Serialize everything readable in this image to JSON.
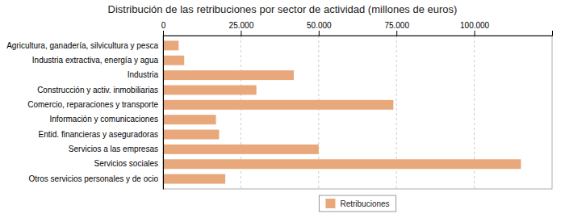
{
  "chart_data": {
    "type": "bar",
    "orientation": "horizontal",
    "title": "Distribución de las retribuciones por sector de actividad (millones de euros)",
    "categories": [
      "Agricultura, ganadería, silvicultura y pesca",
      "Industria extractiva, energía y agua",
      "Industria",
      "Construcción y activ. inmobiliarias",
      "Comercio, reparaciones y transporte",
      "Información y comunicaciones",
      "Entid. financieras y aseguradoras",
      "Servicios a las empresas",
      "Servicios sociales",
      "Otros servicios personales y de ocio"
    ],
    "series": [
      {
        "name": "Retribuciones",
        "color": "#E8A87C",
        "values": [
          5000,
          6800,
          42000,
          30000,
          74000,
          17000,
          18000,
          50000,
          115000,
          20000
        ]
      }
    ],
    "xlim": [
      0,
      125000
    ],
    "xticks": [
      0,
      {
        "value": 25000,
        "label": "25.000"
      },
      {
        "value": 50000,
        "label": "50.000"
      },
      {
        "value": 75000,
        "label": "75.000"
      },
      {
        "value": 100000,
        "label": "100.000"
      }
    ],
    "grid": true,
    "legend": "bottom"
  }
}
